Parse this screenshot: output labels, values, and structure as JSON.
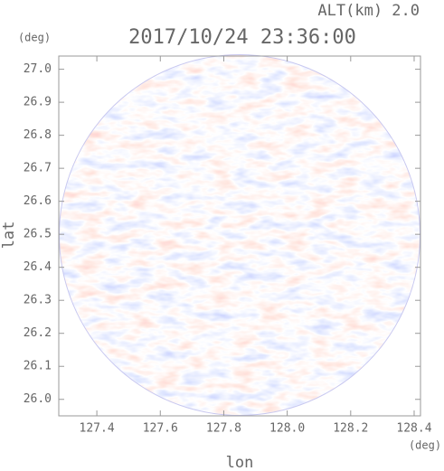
{
  "chart_data": {
    "type": "radar-ppi",
    "title": "2017/10/24 23:36:00",
    "subtitle": "ALT(km) 2.0",
    "x_label": "lon",
    "y_label": "lat",
    "x_unit": "(deg)",
    "y_unit": "(deg)",
    "xlim": [
      127.28,
      128.42
    ],
    "ylim": [
      25.95,
      27.04
    ],
    "xticks": [
      127.4,
      127.6,
      127.8,
      {
        "value": 128.0,
        "label": "128.0"
      },
      128.2,
      128.4
    ],
    "yticks": [
      {
        "value": 26.0,
        "label": "26.0"
      },
      26.1,
      26.2,
      26.3,
      26.4,
      26.5,
      26.6,
      26.7,
      26.8,
      26.9,
      {
        "value": 27.0,
        "label": "27.0"
      }
    ]
  }
}
